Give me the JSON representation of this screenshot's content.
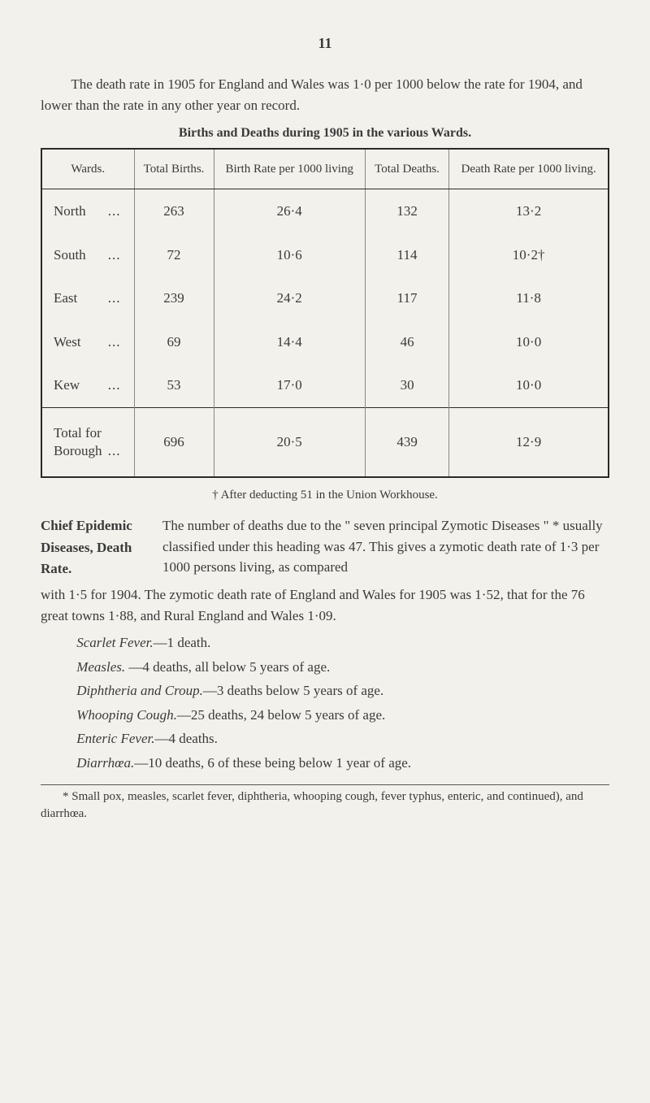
{
  "page_number": "11",
  "intro": "The death rate in 1905 for England and Wales was 1·0 per 1000 below the rate for 1904, and lower than the rate in any other year on record.",
  "table": {
    "title": "Births and Deaths during 1905 in the various Wards.",
    "columns": [
      "Wards.",
      "Total Births.",
      "Birth Rate per 1000 living",
      "Total Deaths.",
      "Death Rate per 1000 living."
    ],
    "rows": [
      {
        "ward": "North",
        "births": "263",
        "birth_rate": "26·4",
        "deaths": "132",
        "death_rate": "13·2"
      },
      {
        "ward": "South",
        "births": "72",
        "birth_rate": "10·6",
        "deaths": "114",
        "death_rate": "10·2†"
      },
      {
        "ward": "East",
        "births": "239",
        "birth_rate": "24·2",
        "deaths": "117",
        "death_rate": "11·8"
      },
      {
        "ward": "West",
        "births": "69",
        "birth_rate": "14·4",
        "deaths": "46",
        "death_rate": "10·0"
      },
      {
        "ward": "Kew",
        "births": "53",
        "birth_rate": "17·0",
        "deaths": "30",
        "death_rate": "10·0"
      }
    ],
    "total": {
      "label_line1": "Total for",
      "label_line2": "Borough",
      "births": "696",
      "birth_rate": "20·5",
      "deaths": "439",
      "death_rate": "12·9"
    }
  },
  "dagger_note": "† After deducting 51 in the Union Workhouse.",
  "chief": {
    "heading_line1": "Chief Epidemic",
    "heading_line2": "Diseases, Death",
    "heading_line3": "Rate.",
    "body": "The number of deaths due to the \" seven principal Zymotic Diseases \" * usually classified under this heading was 47. This gives a zymotic death rate of 1·3 per 1000 persons living, as compared",
    "body_continue": "with 1·5 for 1904. The zymotic death rate of England and Wales for 1905 was 1·52, that for the 76 great towns 1·88, and Rural England and Wales 1·09."
  },
  "diseases": {
    "scarlet": {
      "name": "Scarlet Fever.",
      "text": "—1 death."
    },
    "measles": {
      "name": "Measles.",
      "text": " —4 deaths, all below 5 years of age."
    },
    "diphtheria": {
      "name": "Diphtheria and Croup.",
      "text": "—3 deaths below 5 years of age."
    },
    "whooping": {
      "name": "Whooping Cough.",
      "text": "—25 deaths, 24 below 5 years of age."
    },
    "enteric": {
      "name": "Enteric Fever.",
      "text": "—4 deaths."
    },
    "diarrhoea": {
      "name": "Diarrhœa.",
      "text": "—10 deaths, 6 of these being below 1 year of age."
    }
  },
  "star_note": "* Small pox, measles, scarlet fever, diphtheria, whooping cough, fever typhus, enteric, and continued), and diarrhœa.",
  "dots": "..."
}
